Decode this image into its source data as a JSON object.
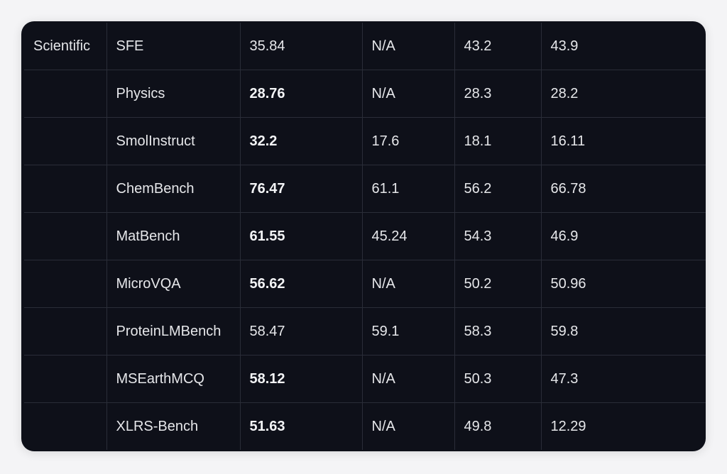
{
  "table": {
    "rows": [
      {
        "category": "Scientific",
        "benchmark": "SFE",
        "values": [
          {
            "v": "35.84",
            "bold": false
          },
          {
            "v": "N/A"
          },
          {
            "v": "43.2"
          },
          {
            "v": "43.9"
          }
        ]
      },
      {
        "category": "",
        "benchmark": "Physics",
        "values": [
          {
            "v": "28.76",
            "bold": true
          },
          {
            "v": "N/A"
          },
          {
            "v": "28.3"
          },
          {
            "v": "28.2"
          }
        ]
      },
      {
        "category": "",
        "benchmark": "SmolInstruct",
        "values": [
          {
            "v": "32.2",
            "bold": true
          },
          {
            "v": "17.6"
          },
          {
            "v": "18.1"
          },
          {
            "v": "16.11"
          }
        ]
      },
      {
        "category": "",
        "benchmark": "ChemBench",
        "values": [
          {
            "v": "76.47",
            "bold": true
          },
          {
            "v": "61.1"
          },
          {
            "v": "56.2"
          },
          {
            "v": "66.78"
          }
        ]
      },
      {
        "category": "",
        "benchmark": "MatBench",
        "values": [
          {
            "v": "61.55",
            "bold": true
          },
          {
            "v": "45.24"
          },
          {
            "v": "54.3"
          },
          {
            "v": "46.9"
          }
        ]
      },
      {
        "category": "",
        "benchmark": "MicroVQA",
        "values": [
          {
            "v": "56.62",
            "bold": true
          },
          {
            "v": "N/A"
          },
          {
            "v": "50.2"
          },
          {
            "v": "50.96"
          }
        ]
      },
      {
        "category": "",
        "benchmark": "ProteinLMBench",
        "values": [
          {
            "v": "58.47",
            "bold": false
          },
          {
            "v": "59.1"
          },
          {
            "v": "58.3"
          },
          {
            "v": "59.8"
          }
        ]
      },
      {
        "category": "",
        "benchmark": "MSEarthMCQ",
        "values": [
          {
            "v": "58.12",
            "bold": true
          },
          {
            "v": "N/A"
          },
          {
            "v": "50.3"
          },
          {
            "v": "47.3"
          }
        ]
      },
      {
        "category": "",
        "benchmark": "XLRS-Bench",
        "values": [
          {
            "v": "51.63",
            "bold": true
          },
          {
            "v": "N/A"
          },
          {
            "v": "49.8"
          },
          {
            "v": "12.29"
          }
        ]
      }
    ]
  },
  "colors": {
    "card_background": "#0e1019",
    "grid_line": "#2a2d38",
    "text": "#e6e7ea"
  }
}
